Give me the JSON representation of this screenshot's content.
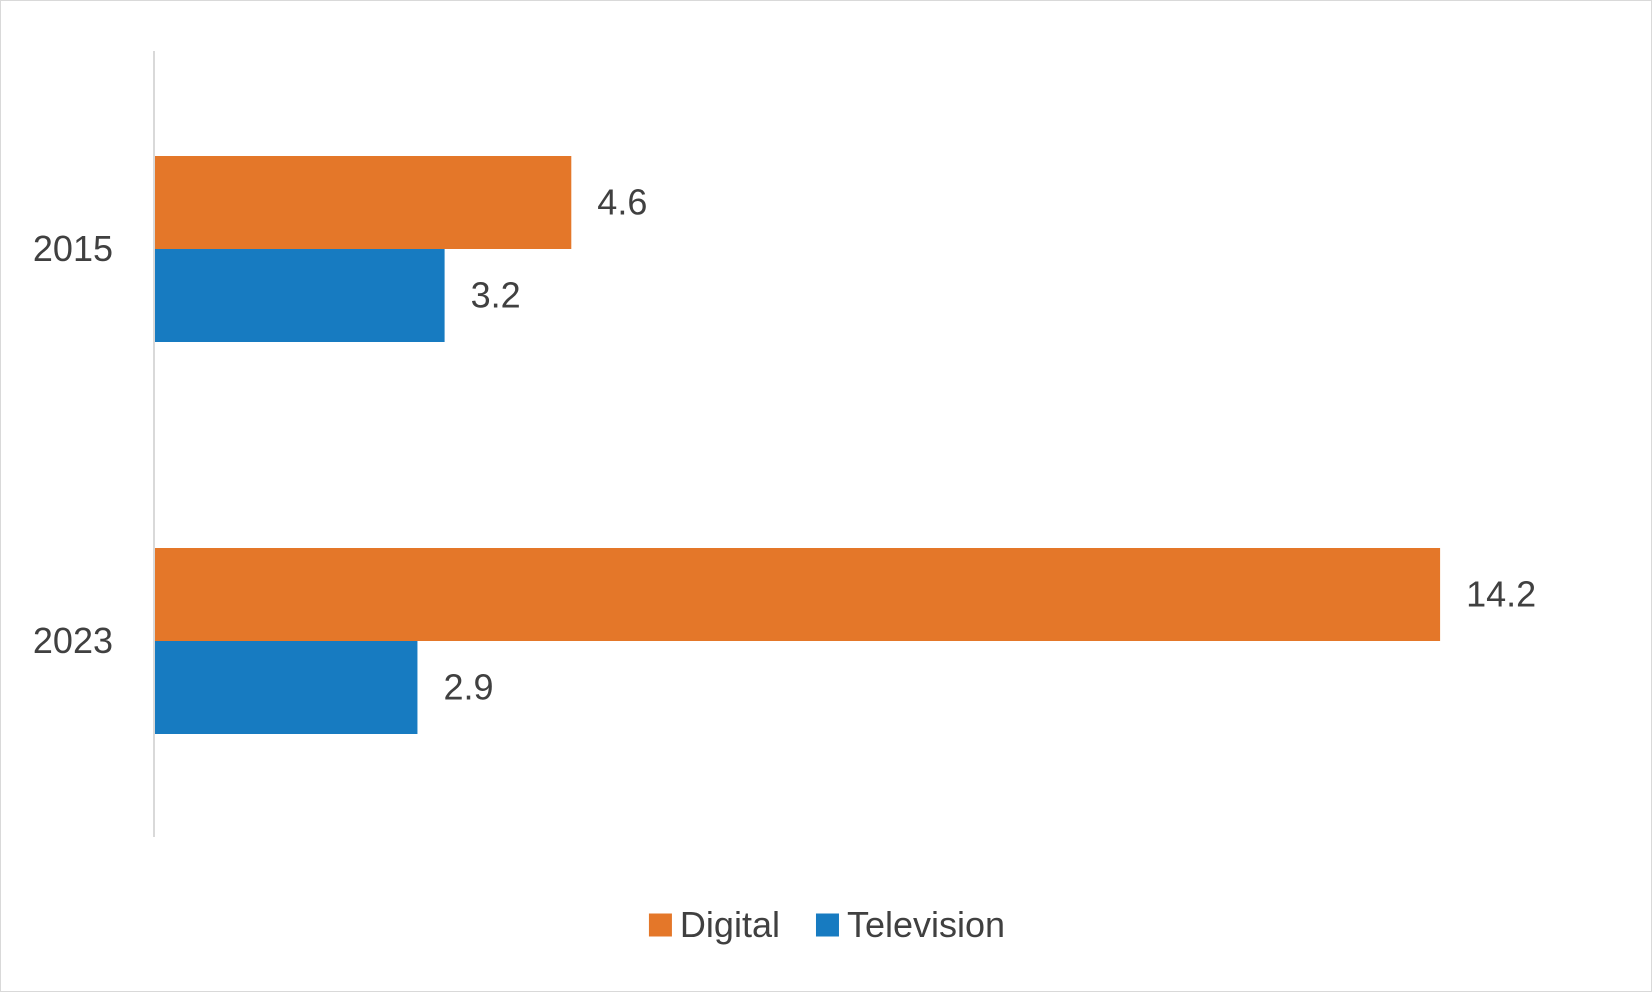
{
  "chart_data": {
    "type": "bar",
    "orientation": "horizontal",
    "title": "",
    "xlabel": "",
    "ylabel": "",
    "categories": [
      "2015",
      "2023"
    ],
    "series": [
      {
        "name": "Digital",
        "color": "#E47729",
        "values": [
          4.6,
          14.2
        ]
      },
      {
        "name": "Television",
        "color": "#177BC1",
        "values": [
          3.2,
          2.9
        ]
      }
    ],
    "xlim": [
      0,
      16
    ],
    "grid": false,
    "x_axis_visible": false,
    "data_labels": true,
    "legend": {
      "position": "bottom",
      "entries": [
        "Digital",
        "Television"
      ]
    }
  }
}
